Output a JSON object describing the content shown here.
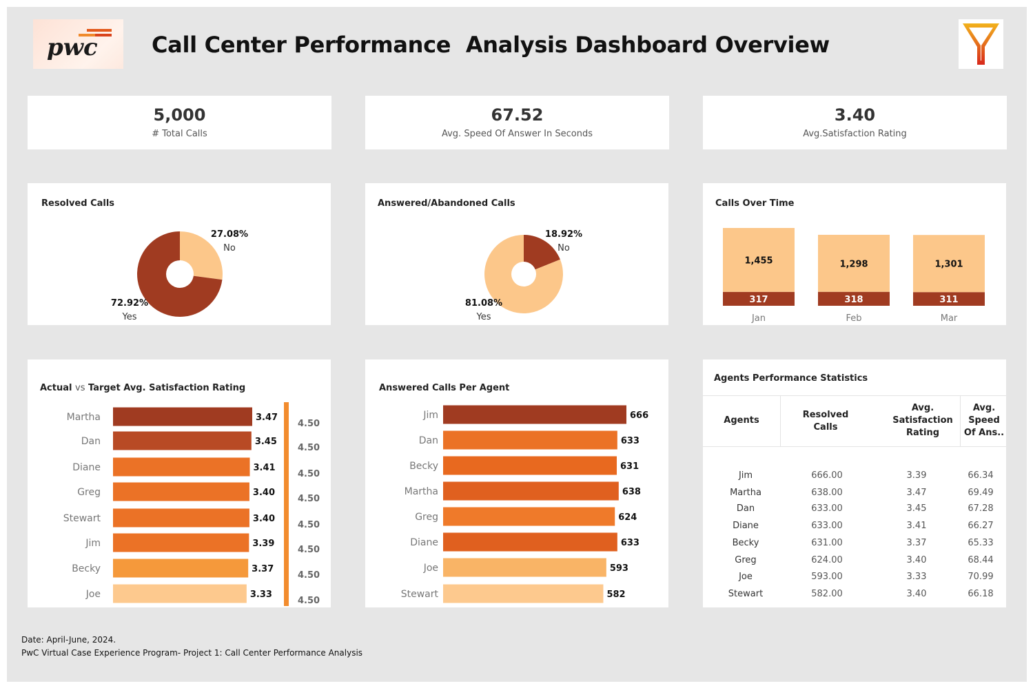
{
  "header": {
    "logo_text": "pwc",
    "title": "Call Center Performance  Analysis Dashboard Overview",
    "filter_icon": "filter-funnel-icon"
  },
  "kpis": [
    {
      "value": "5,000",
      "label": "# Total Calls"
    },
    {
      "value": "67.52",
      "label": "Avg. Speed Of Answer In Seconds"
    },
    {
      "value": "3.40",
      "label": "Avg.Satisfaction Rating"
    }
  ],
  "colors": {
    "dark_rust": "#a03b21",
    "rust": "#b84a25",
    "orange_dark": "#e0601f",
    "orange": "#eb7226",
    "orange_light": "#f5993b",
    "peach": "#fcc78a",
    "peach_light": "#fdd29b",
    "bg": "#e6e6e6"
  },
  "chart_data": [
    {
      "id": "resolved",
      "type": "pie",
      "title": "Resolved Calls",
      "slices": [
        {
          "label": "No",
          "value": 27.08,
          "display": "27.08%",
          "color": "#fcc78a"
        },
        {
          "label": "Yes",
          "value": 72.92,
          "display": "72.92%",
          "color": "#a03b21"
        }
      ]
    },
    {
      "id": "answered",
      "type": "pie",
      "title": "Answered/Abandoned Calls",
      "slices": [
        {
          "label": "No",
          "value": 18.92,
          "display": "18.92%",
          "color": "#a03b21"
        },
        {
          "label": "Yes",
          "value": 81.08,
          "display": "81.08%",
          "color": "#fcc78a"
        }
      ]
    },
    {
      "id": "calls_over_time",
      "type": "bar",
      "stacked": true,
      "title": "Calls Over Time",
      "categories": [
        "Jan",
        "Feb",
        "Mar"
      ],
      "series": [
        {
          "values": [
            317,
            318,
            311
          ],
          "labels": [
            "317",
            "318",
            "311"
          ],
          "color": "#a03b21"
        },
        {
          "values": [
            1455,
            1298,
            1301
          ],
          "labels": [
            "1,455",
            "1,298",
            "1,301"
          ],
          "color": "#fcc78a"
        }
      ]
    },
    {
      "id": "satisfaction",
      "type": "bar",
      "orientation": "horizontal",
      "title_parts": [
        "Actual",
        "vs",
        "Target Avg.  Satisfaction Rating"
      ],
      "categories": [
        "Martha",
        "Dan",
        "Diane",
        "Greg",
        "Stewart",
        "Jim",
        "Becky",
        "Joe"
      ],
      "values": [
        3.47,
        3.45,
        3.41,
        3.4,
        3.4,
        3.39,
        3.37,
        3.33
      ],
      "labels": [
        "3.47",
        "3.45",
        "3.41",
        "3.40",
        "3.40",
        "3.39",
        "3.37",
        "3.33"
      ],
      "target": 4.5,
      "target_labels": [
        "4.50",
        "4.50",
        "4.50",
        "4.50",
        "4.50",
        "4.50",
        "4.50",
        "4.50"
      ],
      "colors": [
        "#a03b21",
        "#b84a25",
        "#eb7226",
        "#eb7226",
        "#eb7226",
        "#eb7226",
        "#f5993b",
        "#fdc98e"
      ]
    },
    {
      "id": "answered_per_agent",
      "type": "bar",
      "orientation": "horizontal",
      "title": "Answered Calls Per Agent",
      "categories": [
        "Jim",
        "Dan",
        "Becky",
        "Martha",
        "Greg",
        "Diane",
        "Joe",
        "Stewart"
      ],
      "values": [
        666,
        633,
        631,
        638,
        624,
        633,
        593,
        582
      ],
      "labels": [
        "666",
        "633",
        "631",
        "638",
        "624",
        "633",
        "593",
        "582"
      ],
      "colors": [
        "#a03b21",
        "#eb7226",
        "#e8691f",
        "#e0601f",
        "#ef7a2a",
        "#e0601f",
        "#f9b466",
        "#fdc98e"
      ]
    }
  ],
  "agents_table": {
    "title": "Agents Performance Statistics",
    "columns": [
      [
        "Agents"
      ],
      [
        "Resolved",
        "Calls"
      ],
      [
        "Avg.",
        "Satisfaction",
        "Rating"
      ],
      [
        "Avg.",
        "Speed",
        "Of Ans.."
      ]
    ],
    "rows": [
      [
        "Jim",
        "666.00",
        "3.39",
        "66.34"
      ],
      [
        "Martha",
        "638.00",
        "3.47",
        "69.49"
      ],
      [
        "Dan",
        "633.00",
        "3.45",
        "67.28"
      ],
      [
        "Diane",
        "633.00",
        "3.41",
        "66.27"
      ],
      [
        "Becky",
        "631.00",
        "3.37",
        "65.33"
      ],
      [
        "Greg",
        "624.00",
        "3.40",
        "68.44"
      ],
      [
        "Joe",
        "593.00",
        "3.33",
        "70.99"
      ],
      [
        "Stewart",
        "582.00",
        "3.40",
        "66.18"
      ]
    ]
  },
  "footer": {
    "date": "Date: April-June, 2024.",
    "program": "PwC Virtual Case Experience Program- Project 1: Call Center Performance Analysis"
  }
}
